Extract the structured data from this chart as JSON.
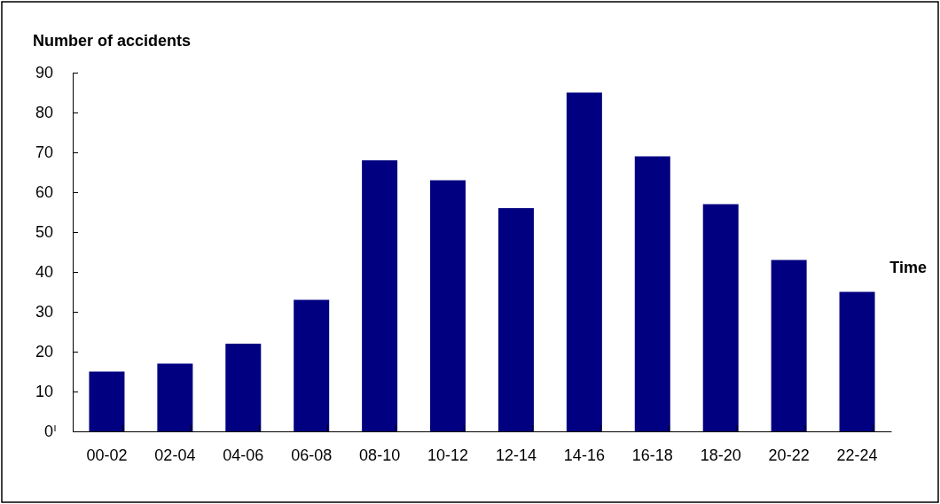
{
  "chart_data": {
    "type": "bar",
    "xlabel": "Time",
    "ylabel": "Number of accidents",
    "categories": [
      "00-02",
      "02-04",
      "04-06",
      "06-08",
      "08-10",
      "10-12",
      "12-14",
      "14-16",
      "16-18",
      "18-20",
      "20-22",
      "22-24"
    ],
    "values": [
      15,
      17,
      22,
      33,
      68,
      63,
      56,
      85,
      69,
      57,
      43,
      35
    ],
    "color": "#000080",
    "ylim": [
      0,
      90
    ],
    "yticks": [
      0,
      10,
      20,
      30,
      40,
      50,
      60,
      70,
      80,
      90
    ],
    "grid": false
  }
}
